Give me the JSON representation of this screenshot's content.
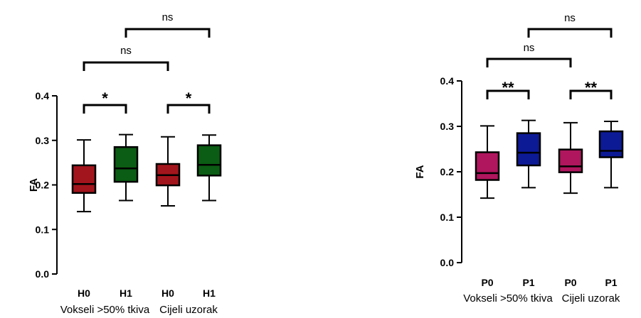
{
  "chart_data": [
    {
      "type": "box",
      "ylabel": "FA",
      "ylim": [
        0.0,
        0.4
      ],
      "yticks": [
        "0.0",
        "0.1",
        "0.2",
        "0.3",
        "0.4"
      ],
      "categories": [
        "H0",
        "H1",
        "H0",
        "H1"
      ],
      "groups": [
        {
          "label": "Vokseli >50% tkiva",
          "members": [
            0,
            1
          ]
        },
        {
          "label": "Cijeli uzorak",
          "members": [
            2,
            3
          ]
        }
      ],
      "boxes": [
        {
          "category": "H0",
          "color": "#a3151c",
          "min": 0.14,
          "q1": 0.182,
          "median": 0.202,
          "q3": 0.244,
          "max": 0.301
        },
        {
          "category": "H1",
          "color": "#0b5c14",
          "min": 0.165,
          "q1": 0.207,
          "median": 0.237,
          "q3": 0.285,
          "max": 0.313
        },
        {
          "category": "H0",
          "color": "#a3151c",
          "min": 0.153,
          "q1": 0.199,
          "median": 0.222,
          "q3": 0.247,
          "max": 0.308
        },
        {
          "category": "H1",
          "color": "#0b5c14",
          "min": 0.165,
          "q1": 0.221,
          "median": 0.245,
          "q3": 0.289,
          "max": 0.312
        }
      ],
      "significance": [
        {
          "from": 0,
          "to": 1,
          "label": "*"
        },
        {
          "from": 2,
          "to": 3,
          "label": "*"
        },
        {
          "from": 0,
          "to": 2,
          "label": "ns"
        },
        {
          "from": 1,
          "to": 3,
          "label": "ns"
        }
      ]
    },
    {
      "type": "box",
      "ylabel": "FA",
      "ylim": [
        0.0,
        0.4
      ],
      "yticks": [
        "0.0",
        "0.1",
        "0.2",
        "0.3",
        "0.4"
      ],
      "categories": [
        "P0",
        "P1",
        "P0",
        "P1"
      ],
      "groups": [
        {
          "label": "Vokseli >50% tkiva",
          "members": [
            0,
            1
          ]
        },
        {
          "label": "Cijeli uzorak",
          "members": [
            2,
            3
          ]
        }
      ],
      "boxes": [
        {
          "category": "P0",
          "color": "#b0165e",
          "min": 0.142,
          "q1": 0.182,
          "median": 0.197,
          "q3": 0.243,
          "max": 0.301
        },
        {
          "category": "P1",
          "color": "#0d1a96",
          "min": 0.165,
          "q1": 0.214,
          "median": 0.242,
          "q3": 0.285,
          "max": 0.313
        },
        {
          "category": "P0",
          "color": "#b0165e",
          "min": 0.153,
          "q1": 0.199,
          "median": 0.212,
          "q3": 0.249,
          "max": 0.308
        },
        {
          "category": "P1",
          "color": "#0d1a96",
          "min": 0.165,
          "q1": 0.232,
          "median": 0.246,
          "q3": 0.289,
          "max": 0.311
        }
      ],
      "significance": [
        {
          "from": 0,
          "to": 1,
          "label": "**"
        },
        {
          "from": 2,
          "to": 3,
          "label": "**"
        },
        {
          "from": 0,
          "to": 2,
          "label": "ns"
        },
        {
          "from": 1,
          "to": 3,
          "label": "ns"
        }
      ]
    }
  ]
}
